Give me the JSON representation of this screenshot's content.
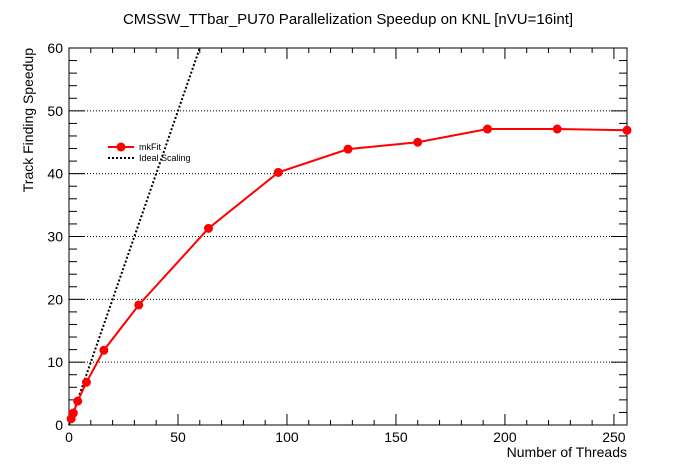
{
  "chart_data": {
    "type": "line",
    "title": "CMSSW_TTbar_PU70 Parallelization Speedup on KNL [nVU=16int]",
    "xlabel": "Number of Threads",
    "ylabel": "Track Finding Speedup",
    "xlim": [
      0,
      256
    ],
    "ylim": [
      0,
      60
    ],
    "x_ticks": [
      "0",
      "50",
      "100",
      "150",
      "200",
      "250"
    ],
    "y_ticks": [
      "0",
      "10",
      "20",
      "30",
      "40",
      "50",
      "60"
    ],
    "grid": "horizontal dotted",
    "legend_position": "upper-left",
    "series": [
      {
        "name": "mkFit",
        "color": "#ff0000",
        "style": "solid line with filled circle markers",
        "x": [
          1,
          2,
          4,
          8,
          16,
          32,
          64,
          96,
          128,
          160,
          192,
          224,
          256
        ],
        "y": [
          1.0,
          1.9,
          3.8,
          6.8,
          11.9,
          19.1,
          31.3,
          40.2,
          43.9,
          45.0,
          47.1,
          47.1,
          46.9
        ]
      },
      {
        "name": "Ideal Scaling",
        "color": "#000000",
        "style": "dotted line",
        "x": [
          0,
          60
        ],
        "y": [
          0,
          60
        ]
      }
    ]
  }
}
